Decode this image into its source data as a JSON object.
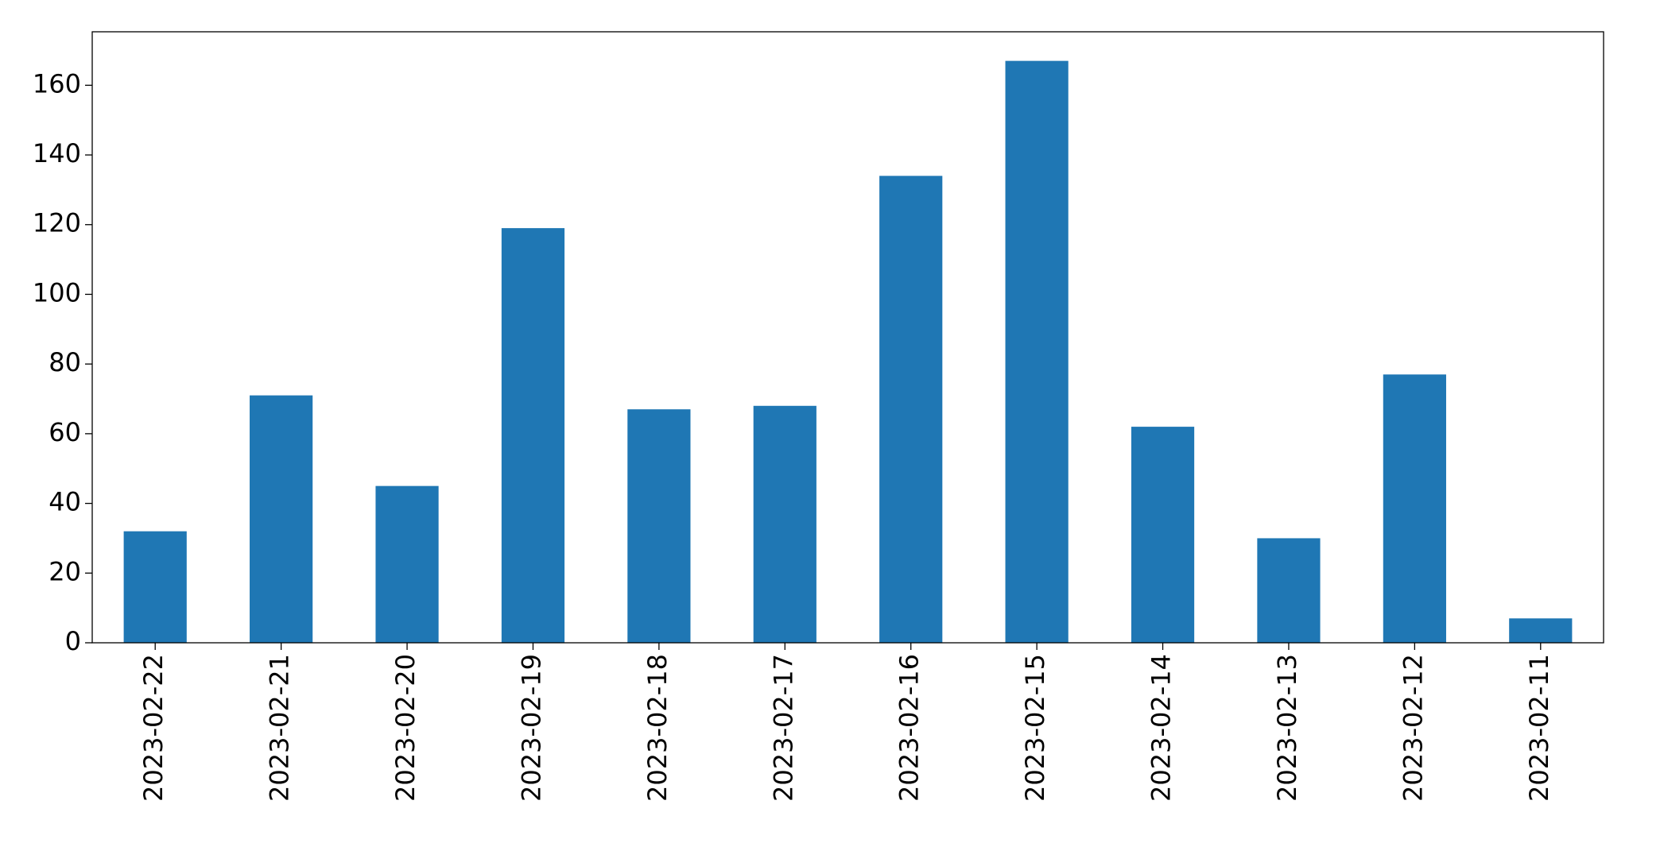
{
  "chart_data": {
    "type": "bar",
    "categories": [
      "2023-02-22",
      "2023-02-21",
      "2023-02-20",
      "2023-02-19",
      "2023-02-18",
      "2023-02-17",
      "2023-02-16",
      "2023-02-15",
      "2023-02-14",
      "2023-02-13",
      "2023-02-12",
      "2023-02-11"
    ],
    "values": [
      32,
      71,
      45,
      119,
      67,
      68,
      134,
      167,
      62,
      30,
      77,
      7
    ],
    "color": "#1f77b4",
    "ylim": [
      0,
      175.35
    ],
    "yticks": [
      0,
      20,
      40,
      60,
      80,
      100,
      120,
      140,
      160
    ],
    "grid": false
  }
}
